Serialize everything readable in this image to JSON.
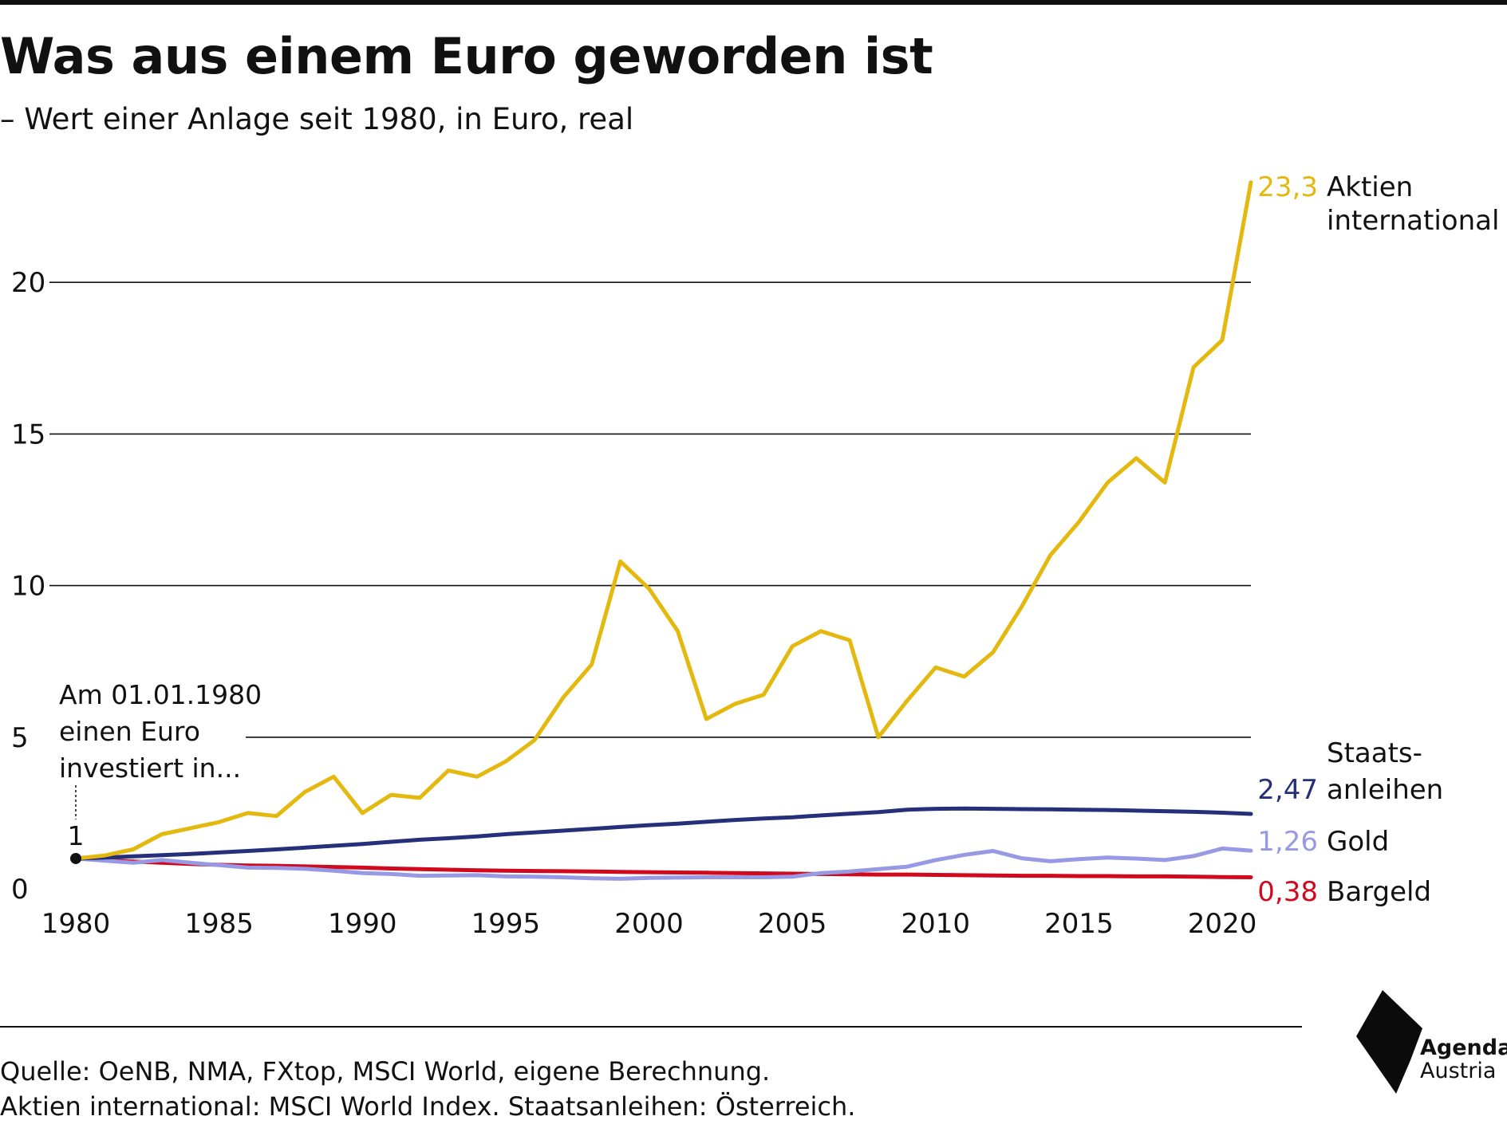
{
  "header": {
    "title": "Was aus einem Euro geworden ist",
    "subtitle": "– Wert einer Anlage seit 1980, in Euro, real"
  },
  "chart_data": {
    "type": "line",
    "title": "Was aus einem Euro geworden ist",
    "subtitle": "– Wert einer Anlage seit 1980, in Euro, real",
    "xlabel": "",
    "ylabel": "",
    "xlim": [
      1980,
      2021
    ],
    "ylim": [
      0,
      23.5
    ],
    "x_ticks": [
      1980,
      1985,
      1990,
      1995,
      2000,
      2005,
      2010,
      2015,
      2020
    ],
    "y_ticks": [
      0,
      5,
      10,
      15,
      20
    ],
    "grid": "horizontal",
    "x": [
      1980,
      1981,
      1982,
      1983,
      1984,
      1985,
      1986,
      1987,
      1988,
      1989,
      1990,
      1991,
      1992,
      1993,
      1994,
      1995,
      1996,
      1997,
      1998,
      1999,
      2000,
      2001,
      2002,
      2003,
      2004,
      2005,
      2006,
      2007,
      2008,
      2009,
      2010,
      2011,
      2012,
      2013,
      2014,
      2015,
      2016,
      2017,
      2018,
      2019,
      2020,
      2021
    ],
    "series": [
      {
        "name": "Aktien international",
        "end_label": "23,3",
        "color": "#e3b80f",
        "values": [
          1.0,
          1.1,
          1.3,
          1.8,
          2.0,
          2.2,
          2.5,
          2.4,
          3.2,
          3.7,
          2.5,
          3.1,
          3.0,
          3.9,
          3.7,
          4.2,
          4.9,
          6.3,
          7.4,
          10.8,
          9.9,
          8.5,
          5.6,
          6.1,
          6.4,
          8.0,
          8.5,
          8.2,
          5.0,
          6.2,
          7.3,
          7.0,
          7.8,
          9.3,
          11.0,
          12.1,
          13.4,
          14.2,
          13.4,
          17.2,
          18.1,
          23.3
        ]
      },
      {
        "name": "Staatsanleihen",
        "name_lines": [
          "Staats-",
          "anleihen"
        ],
        "end_label": "2,47",
        "color": "#252f7a",
        "values": [
          1.0,
          1.03,
          1.07,
          1.11,
          1.15,
          1.2,
          1.25,
          1.3,
          1.36,
          1.42,
          1.48,
          1.55,
          1.62,
          1.67,
          1.73,
          1.8,
          1.86,
          1.92,
          1.98,
          2.04,
          2.1,
          2.15,
          2.21,
          2.27,
          2.32,
          2.36,
          2.42,
          2.48,
          2.53,
          2.61,
          2.64,
          2.65,
          2.64,
          2.63,
          2.62,
          2.61,
          2.6,
          2.58,
          2.56,
          2.54,
          2.51,
          2.47
        ]
      },
      {
        "name": "Gold",
        "end_label": "1,26",
        "color": "#9899e4",
        "values": [
          1.0,
          0.93,
          0.86,
          0.95,
          0.86,
          0.78,
          0.7,
          0.69,
          0.66,
          0.6,
          0.52,
          0.49,
          0.43,
          0.44,
          0.45,
          0.41,
          0.4,
          0.38,
          0.35,
          0.33,
          0.36,
          0.37,
          0.38,
          0.38,
          0.38,
          0.4,
          0.52,
          0.57,
          0.65,
          0.73,
          0.95,
          1.12,
          1.25,
          1.01,
          0.91,
          0.98,
          1.03,
          1.0,
          0.95,
          1.08,
          1.33,
          1.26
        ]
      },
      {
        "name": "Bargeld",
        "end_label": "0,38",
        "color": "#d0091e",
        "values": [
          1.0,
          0.95,
          0.9,
          0.86,
          0.82,
          0.79,
          0.77,
          0.76,
          0.74,
          0.72,
          0.7,
          0.67,
          0.65,
          0.63,
          0.61,
          0.6,
          0.59,
          0.58,
          0.57,
          0.56,
          0.55,
          0.54,
          0.53,
          0.52,
          0.51,
          0.5,
          0.49,
          0.48,
          0.47,
          0.47,
          0.46,
          0.45,
          0.44,
          0.43,
          0.43,
          0.42,
          0.42,
          0.41,
          0.41,
          0.4,
          0.39,
          0.38
        ]
      }
    ],
    "annotation": {
      "lines": [
        "Am 01.01.1980",
        "einen Euro",
        "investiert in..."
      ],
      "start_label": "1",
      "x": 1980,
      "y": 1
    }
  },
  "footer": {
    "source_line1": "Quelle: OeNB, NMA, FXtop, MSCI World, eigene Berechnung.",
    "source_line2": "Aktien international: MSCI World Index. Staatsanleihen: Österreich."
  },
  "logo": {
    "line1": "Agenda",
    "line2": "Austria"
  }
}
